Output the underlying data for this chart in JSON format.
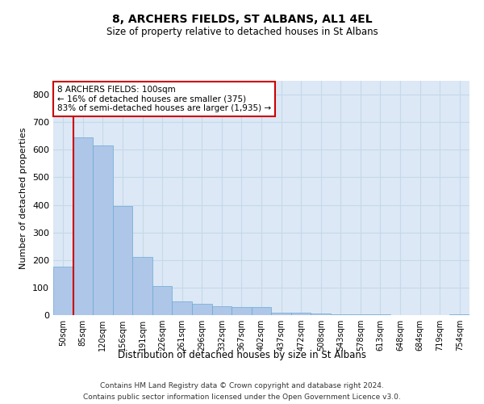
{
  "title": "8, ARCHERS FIELDS, ST ALBANS, AL1 4EL",
  "subtitle": "Size of property relative to detached houses in St Albans",
  "xlabel": "Distribution of detached houses by size in St Albans",
  "ylabel": "Number of detached properties",
  "footer_line1": "Contains HM Land Registry data © Crown copyright and database right 2024.",
  "footer_line2": "Contains public sector information licensed under the Open Government Licence v3.0.",
  "annotation_line1": "8 ARCHERS FIELDS: 100sqm",
  "annotation_line2": "← 16% of detached houses are smaller (375)",
  "annotation_line3": "83% of semi-detached houses are larger (1,935) →",
  "bar_color": "#aec6e8",
  "bar_edge_color": "#6aaad4",
  "vline_color": "#cc0000",
  "grid_color": "#c5d8ea",
  "background_color": "#dce8f5",
  "annotation_box_color": "#ffffff",
  "annotation_border_color": "#cc0000",
  "categories": [
    "50sqm",
    "85sqm",
    "120sqm",
    "156sqm",
    "191sqm",
    "226sqm",
    "261sqm",
    "296sqm",
    "332sqm",
    "367sqm",
    "402sqm",
    "437sqm",
    "472sqm",
    "508sqm",
    "543sqm",
    "578sqm",
    "613sqm",
    "648sqm",
    "684sqm",
    "719sqm",
    "754sqm"
  ],
  "values": [
    175,
    645,
    615,
    395,
    210,
    105,
    50,
    42,
    32,
    30,
    28,
    10,
    8,
    5,
    3,
    2,
    2,
    1,
    1,
    1,
    2
  ],
  "ylim": [
    0,
    850
  ],
  "yticks": [
    0,
    100,
    200,
    300,
    400,
    500,
    600,
    700,
    800
  ],
  "vline_x": 0.5
}
